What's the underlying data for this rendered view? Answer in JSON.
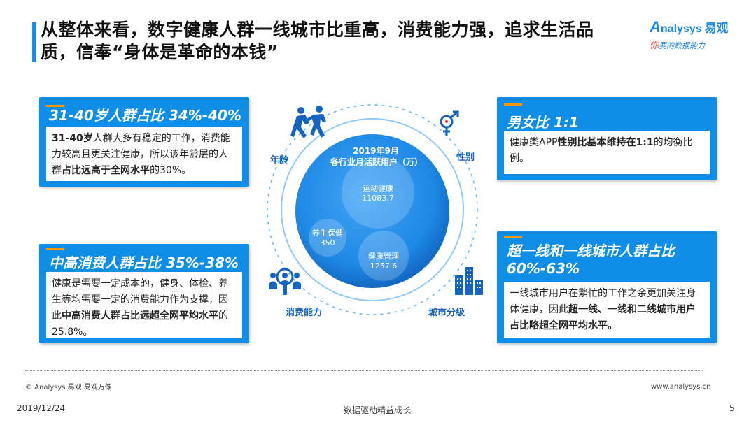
{
  "title": {
    "line1": "从整体来看，数字健康人群一线城市比重高，消费能力强，追求生活品",
    "line2": "质，信奉“身体是革命的本钱”"
  },
  "brand": {
    "name_en": "nalysys",
    "name_prefix": "A",
    "name_cn": "易观",
    "slogan_accent": "你",
    "slogan": "要的数据能力"
  },
  "cards": {
    "age": {
      "head": "31-40岁人群占比  34%-40%",
      "body_b1": "31-40岁",
      "body_t1": "人群大多有稳定的工作，消费能力较高且更关注健康，所以该年龄层的人群",
      "body_b2": "占比远高于全网水平",
      "body_t2": "的30%。"
    },
    "consume": {
      "head": "中高消费人群占比  35%-38%",
      "body_t1": "健康是需要一定成本的，健身、体检、养生等均需要一定的消费能力作为支撑，因此",
      "body_b1": "中高消费人群占比远超全网平均水平",
      "body_t2": "的25.8%。"
    },
    "gender": {
      "head": "男女比 1:1",
      "body_t1": "健康类APP",
      "body_b1": "性别比基本维持在1:1",
      "body_t2": "的均衡比例。"
    },
    "city": {
      "head1": "超一线和一线城市人群占比",
      "head2": "60%-63%",
      "body_t1": "一线城市用户在繁忙的工作之余更加关注身体健康，因此",
      "body_b1": "超一线、一线和二线城市用户占比略超全网平均水平。"
    }
  },
  "diagram": {
    "labels": {
      "age": "年龄",
      "gender": "性别",
      "consume": "消费能力",
      "city": "城市分级"
    },
    "center_title_line1": "2019年9月",
    "center_title_line2": "各行业月活跃用户（万）",
    "bubbles": [
      {
        "name": "运动健康",
        "value": "11083.7"
      },
      {
        "name": "养生保健",
        "value": "350"
      },
      {
        "name": "健康管理",
        "value": "1257.6"
      }
    ],
    "icons": [
      "people-running-icon",
      "gender-icon",
      "consumer-search-icon",
      "city-buildings-icon"
    ]
  },
  "footer": {
    "copyright": "© Analysys 易观·易观万像",
    "url": "www.analysys.cn",
    "date": "2019/12/24",
    "center": "数据驱动精益成长",
    "page": "5"
  },
  "colors": {
    "primary": "#0f8ee8",
    "accent": "#ff9800",
    "dark_blue": "#1565c0"
  }
}
